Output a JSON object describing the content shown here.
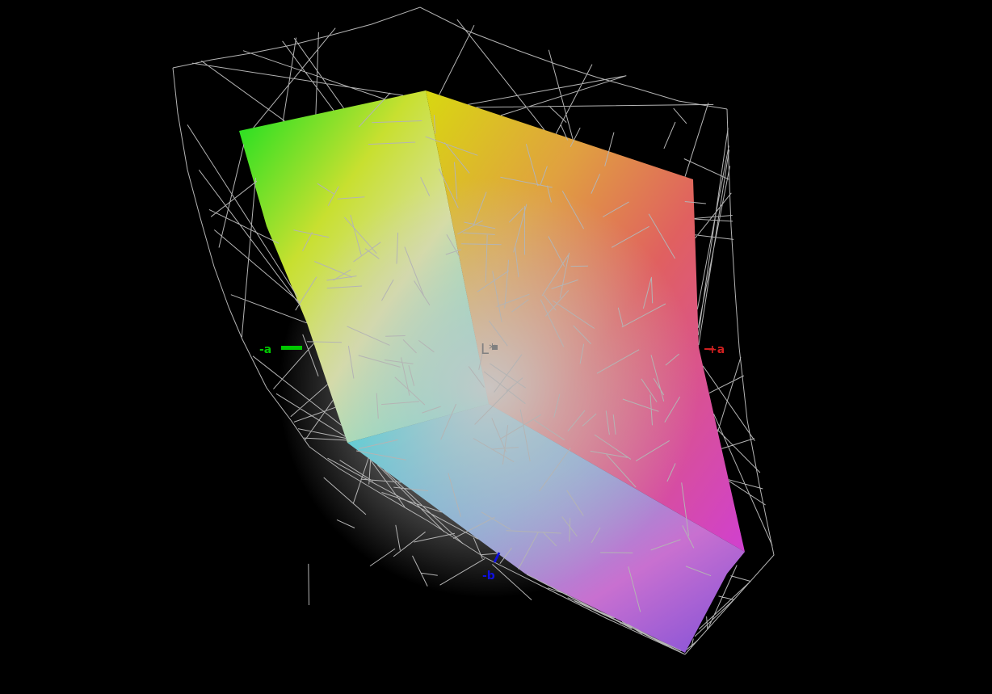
{
  "axes": {
    "l_label": "L*",
    "neg_a_label": "-a",
    "pos_a_label": "+a",
    "neg_b_label": "-b"
  },
  "colors": {
    "background": "#000000",
    "wireframe": "#b4b4b4",
    "neg_a_axis": "#00c800",
    "pos_a_axis": "#d02020",
    "neg_b_axis": "#1010e0",
    "l_axis": "#808080"
  }
}
